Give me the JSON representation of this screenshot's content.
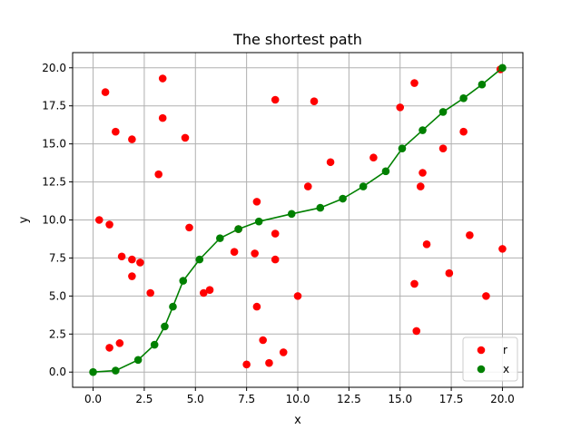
{
  "chart_data": {
    "type": "scatter",
    "title": "The shortest path",
    "xlabel": "x",
    "ylabel": "y",
    "xlim": [
      -1,
      21
    ],
    "ylim": [
      -1,
      21
    ],
    "xticks": [
      0.0,
      2.5,
      5.0,
      7.5,
      10.0,
      12.5,
      15.0,
      17.5,
      20.0
    ],
    "xtick_labels": [
      "0.0",
      "2.5",
      "5.0",
      "7.5",
      "10.0",
      "12.5",
      "15.0",
      "17.5",
      "20.0"
    ],
    "yticks": [
      0.0,
      2.5,
      5.0,
      7.5,
      10.0,
      12.5,
      15.0,
      17.5,
      20.0
    ],
    "ytick_labels": [
      "0.0",
      "2.5",
      "5.0",
      "7.5",
      "10.0",
      "12.5",
      "15.0",
      "17.5",
      "20.0"
    ],
    "grid": true,
    "legend_position": "bottom-right",
    "series": [
      {
        "name": "r",
        "color": "#ff0000",
        "marker": "circle",
        "points": [
          [
            0.3,
            10.0
          ],
          [
            0.6,
            18.4
          ],
          [
            0.8,
            9.7
          ],
          [
            0.8,
            1.6
          ],
          [
            1.1,
            15.8
          ],
          [
            1.3,
            1.9
          ],
          [
            1.4,
            7.6
          ],
          [
            1.9,
            15.3
          ],
          [
            1.9,
            7.4
          ],
          [
            1.9,
            6.3
          ],
          [
            2.3,
            7.2
          ],
          [
            2.8,
            5.2
          ],
          [
            3.2,
            13.0
          ],
          [
            3.4,
            16.7
          ],
          [
            3.4,
            19.3
          ],
          [
            4.5,
            15.4
          ],
          [
            4.7,
            9.5
          ],
          [
            5.4,
            5.2
          ],
          [
            5.7,
            5.4
          ],
          [
            6.9,
            7.9
          ],
          [
            7.1,
            9.4
          ],
          [
            7.5,
            0.5
          ],
          [
            7.9,
            7.8
          ],
          [
            8.0,
            11.2
          ],
          [
            8.0,
            4.3
          ],
          [
            8.3,
            2.1
          ],
          [
            8.6,
            0.6
          ],
          [
            8.9,
            17.9
          ],
          [
            8.9,
            9.1
          ],
          [
            8.9,
            7.4
          ],
          [
            9.3,
            1.3
          ],
          [
            10.0,
            5.0
          ],
          [
            10.5,
            12.2
          ],
          [
            10.8,
            17.8
          ],
          [
            11.6,
            13.8
          ],
          [
            13.7,
            14.1
          ],
          [
            15.0,
            17.4
          ],
          [
            15.7,
            19.0
          ],
          [
            15.7,
            5.8
          ],
          [
            15.8,
            2.7
          ],
          [
            16.0,
            12.2
          ],
          [
            16.1,
            13.1
          ],
          [
            16.3,
            8.4
          ],
          [
            17.1,
            14.7
          ],
          [
            17.4,
            6.5
          ],
          [
            18.1,
            15.8
          ],
          [
            18.4,
            9.0
          ],
          [
            19.2,
            5.0
          ],
          [
            19.9,
            19.9
          ],
          [
            20.0,
            8.1
          ]
        ]
      },
      {
        "name": "x",
        "color": "#008000",
        "marker": "circle",
        "connected": true,
        "points": [
          [
            0.0,
            0.0
          ],
          [
            1.1,
            0.1
          ],
          [
            2.2,
            0.8
          ],
          [
            3.0,
            1.8
          ],
          [
            3.5,
            3.0
          ],
          [
            3.9,
            4.3
          ],
          [
            4.4,
            6.0
          ],
          [
            5.2,
            7.4
          ],
          [
            6.2,
            8.8
          ],
          [
            7.1,
            9.4
          ],
          [
            8.1,
            9.9
          ],
          [
            9.7,
            10.4
          ],
          [
            11.1,
            10.8
          ],
          [
            12.2,
            11.4
          ],
          [
            13.2,
            12.2
          ],
          [
            14.3,
            13.2
          ],
          [
            15.1,
            14.7
          ],
          [
            16.1,
            15.9
          ],
          [
            17.1,
            17.1
          ],
          [
            18.1,
            18.0
          ],
          [
            19.0,
            18.9
          ],
          [
            20.0,
            20.0
          ]
        ]
      }
    ]
  }
}
